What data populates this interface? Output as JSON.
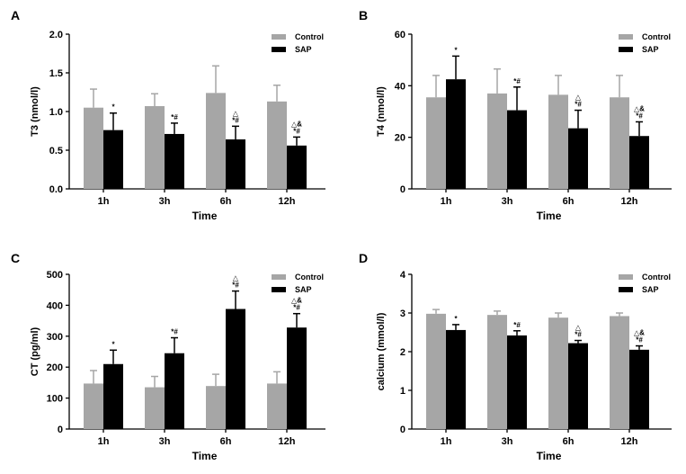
{
  "figure": {
    "legend": {
      "control": "Control",
      "sap": "SAP"
    },
    "colors": {
      "control": "#a6a6a6",
      "sap": "#000000"
    }
  },
  "chart_data": [
    {
      "panel": "A",
      "type": "bar",
      "title": "",
      "ylabel": "T3 (nmol/l)",
      "xlabel": "Time",
      "categories": [
        "1h",
        "3h",
        "6h",
        "12h"
      ],
      "ylim": [
        0,
        2.0
      ],
      "yticks": [
        0,
        0.5,
        1.0,
        1.5,
        2.0
      ],
      "ytick_labels": [
        "0.0",
        "0.5",
        "1.0",
        "1.5",
        "2.0"
      ],
      "series": [
        {
          "name": "Control",
          "values": [
            1.05,
            1.07,
            1.24,
            1.13
          ],
          "errors": [
            0.24,
            0.16,
            0.35,
            0.21
          ]
        },
        {
          "name": "SAP",
          "values": [
            0.76,
            0.71,
            0.64,
            0.56
          ],
          "errors": [
            0.22,
            0.14,
            0.17,
            0.11
          ]
        }
      ],
      "annotations": [
        [
          "*"
        ],
        [
          "*#"
        ],
        [
          "△",
          "*#"
        ],
        [
          "△&",
          "*#"
        ]
      ],
      "legend_position": "top-right"
    },
    {
      "panel": "B",
      "type": "bar",
      "title": "",
      "ylabel": "T4 (nmol/l)",
      "xlabel": "Time",
      "categories": [
        "1h",
        "3h",
        "6h",
        "12h"
      ],
      "ylim": [
        0,
        60
      ],
      "yticks": [
        0,
        20,
        40,
        60
      ],
      "ytick_labels": [
        "0",
        "20",
        "40",
        "60"
      ],
      "series": [
        {
          "name": "Control",
          "values": [
            35.5,
            37.0,
            36.5,
            35.5
          ],
          "errors": [
            8.5,
            9.5,
            7.5,
            8.5
          ]
        },
        {
          "name": "SAP",
          "values": [
            42.5,
            30.5,
            23.5,
            20.5
          ],
          "errors": [
            9.0,
            9.0,
            7.0,
            5.5
          ]
        }
      ],
      "annotations": [
        [
          "*"
        ],
        [
          "*#"
        ],
        [
          "△",
          "*#"
        ],
        [
          "△&",
          "*#"
        ]
      ],
      "legend_position": "top-right"
    },
    {
      "panel": "C",
      "type": "bar",
      "title": "",
      "ylabel": "CT (pg/ml)",
      "xlabel": "Time",
      "categories": [
        "1h",
        "3h",
        "6h",
        "12h"
      ],
      "ylim": [
        0,
        500
      ],
      "yticks": [
        0,
        100,
        200,
        300,
        400,
        500
      ],
      "ytick_labels": [
        "0",
        "100",
        "200",
        "300",
        "400",
        "500"
      ],
      "series": [
        {
          "name": "Control",
          "values": [
            147,
            135,
            139,
            147
          ],
          "errors": [
            42,
            35,
            38,
            38
          ]
        },
        {
          "name": "SAP",
          "values": [
            210,
            245,
            388,
            328
          ],
          "errors": [
            45,
            50,
            58,
            45
          ]
        }
      ],
      "annotations": [
        [
          "*"
        ],
        [
          "*#"
        ],
        [
          "△",
          "*#"
        ],
        [
          "△&",
          "*#"
        ]
      ],
      "legend_position": "top-right"
    },
    {
      "panel": "D",
      "type": "bar",
      "title": "",
      "ylabel": "calcium (mmol/l)",
      "xlabel": "Time",
      "categories": [
        "1h",
        "3h",
        "6h",
        "12h"
      ],
      "ylim": [
        0,
        4
      ],
      "yticks": [
        0,
        1,
        2,
        3,
        4
      ],
      "ytick_labels": [
        "0",
        "1",
        "2",
        "3",
        "4"
      ],
      "series": [
        {
          "name": "Control",
          "values": [
            2.98,
            2.95,
            2.88,
            2.92
          ],
          "errors": [
            0.11,
            0.1,
            0.12,
            0.08
          ]
        },
        {
          "name": "SAP",
          "values": [
            2.56,
            2.42,
            2.22,
            2.05
          ],
          "errors": [
            0.14,
            0.12,
            0.07,
            0.1
          ]
        }
      ],
      "annotations": [
        [
          "*"
        ],
        [
          "*#"
        ],
        [
          "△",
          "*#"
        ],
        [
          "△&",
          "*#"
        ]
      ],
      "legend_position": "top-right"
    }
  ]
}
